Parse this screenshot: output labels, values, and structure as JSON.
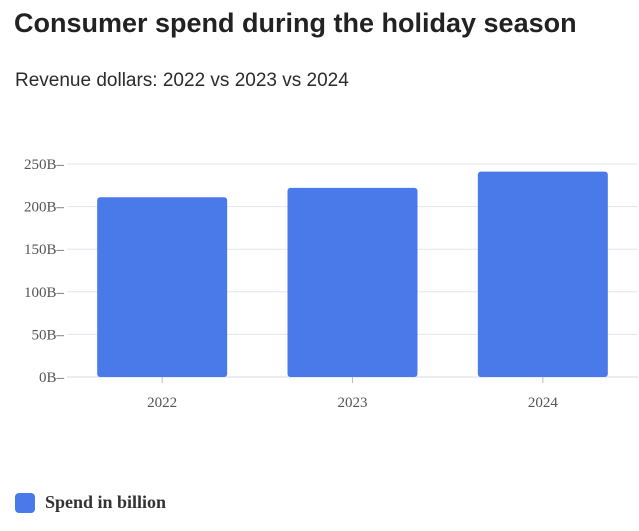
{
  "title": "Consumer spend during the holiday season",
  "subtitle": "Revenue dollars: 2022 vs 2023 vs 2024",
  "colors": {
    "bar": "#4a7aea",
    "grid": "#e3e6ee",
    "axis_text": "#555555"
  },
  "legend": {
    "label": "Spend in billion",
    "placement": "bottom-left"
  },
  "chart_data": {
    "type": "bar",
    "categories": [
      "2022",
      "2023",
      "2024"
    ],
    "series": [
      {
        "name": "Spend in billion",
        "values": [
          211,
          222,
          241
        ]
      }
    ],
    "yticks": [
      0,
      50,
      100,
      150,
      200,
      250
    ],
    "ytick_labels": [
      "0B",
      "50B",
      "100B",
      "150B",
      "200B",
      "250B"
    ],
    "ylim": [
      0,
      250
    ],
    "grid": true
  }
}
